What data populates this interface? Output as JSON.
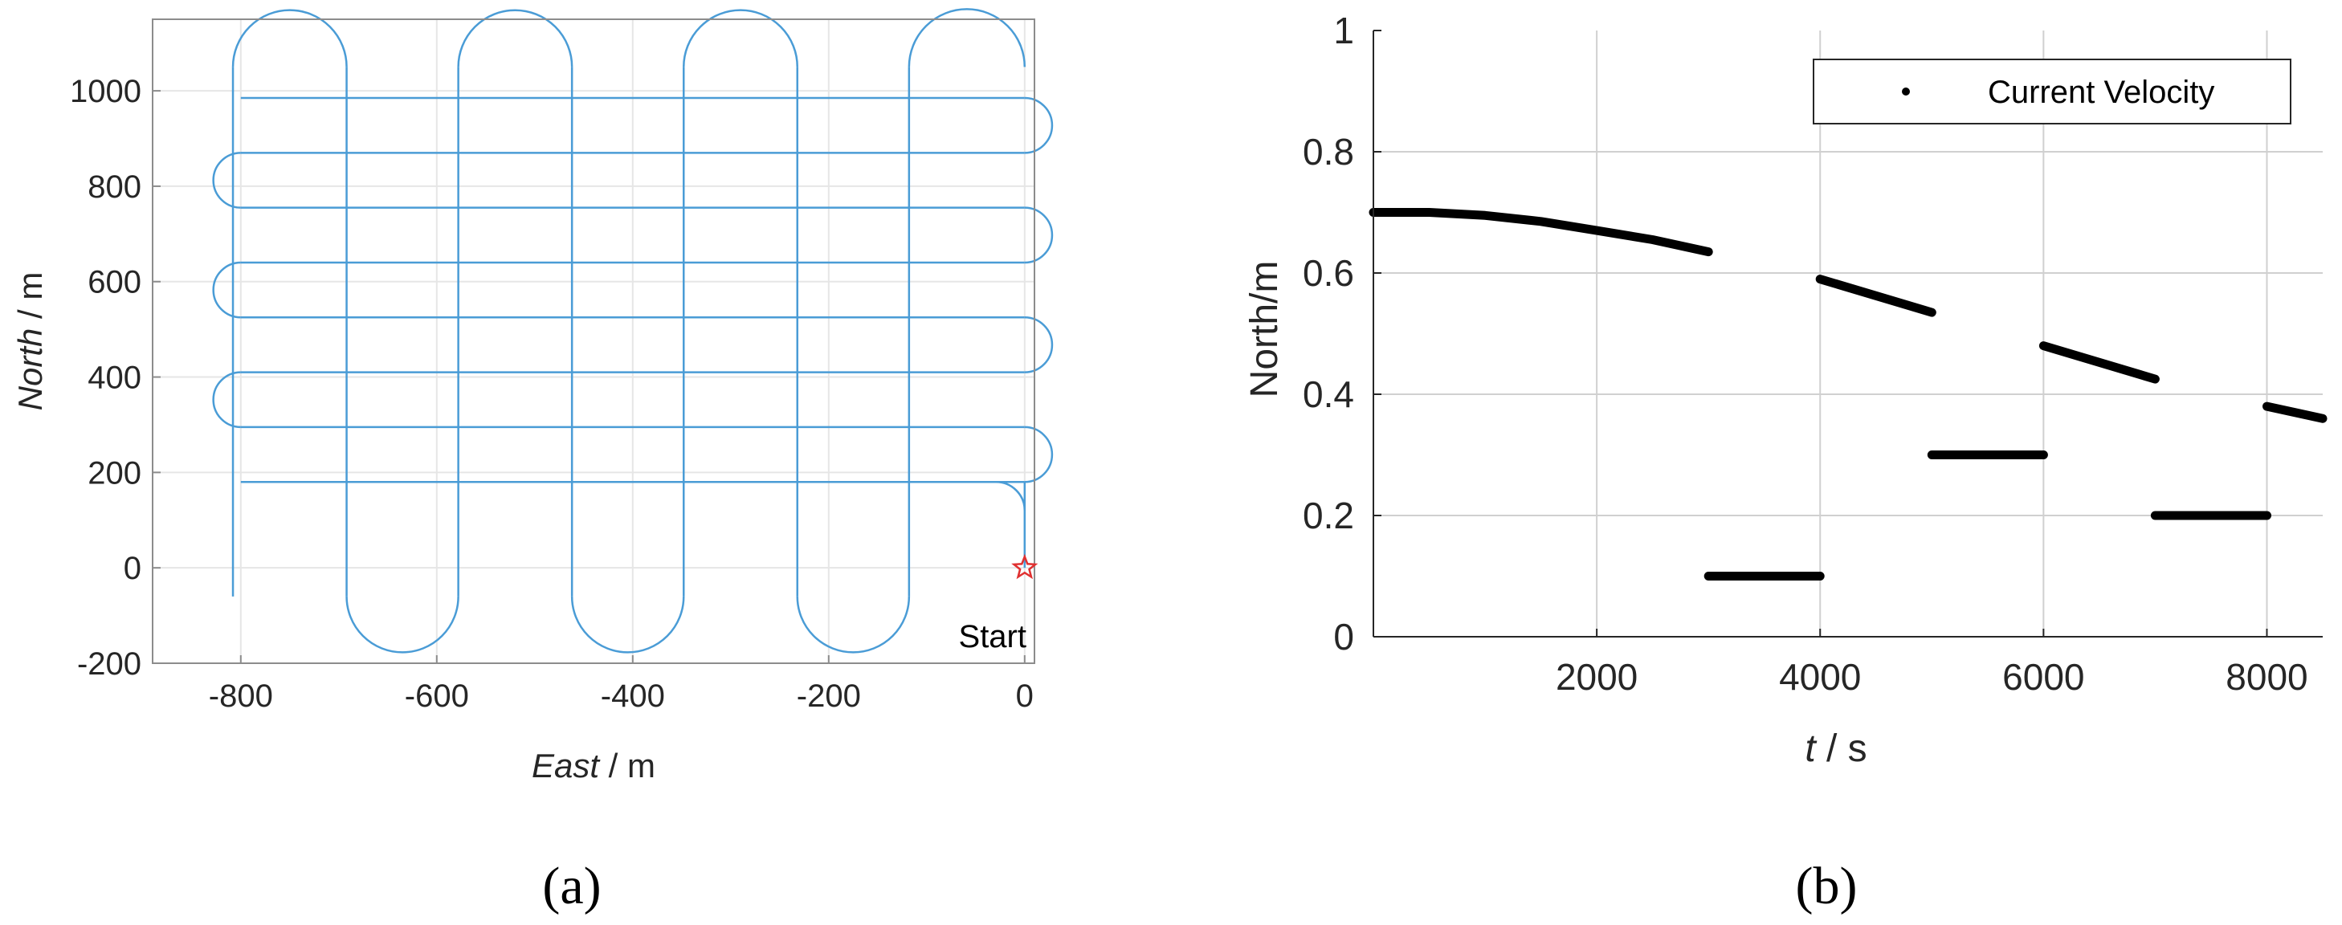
{
  "chart_data": [
    {
      "panel": "a",
      "type": "line",
      "caption": "(a)",
      "xlabel_italic": "East",
      "xlabel_unit": " / m",
      "ylabel_italic": "North",
      "ylabel_unit": " / m",
      "xlim": [
        -890,
        10
      ],
      "ylim": [
        -200,
        1150
      ],
      "xticks": [
        -800,
        -600,
        -400,
        -200,
        0
      ],
      "yticks": [
        -200,
        0,
        200,
        400,
        600,
        800,
        1000
      ],
      "grid": true,
      "series_color": "#4a9cd6",
      "start_marker": {
        "x": 0,
        "y": 0,
        "label": "Start",
        "color": "#e03030"
      },
      "series": [
        {
          "style": "lawnmower-path",
          "horizontal_lane_y": [
            985,
            870,
            755,
            640,
            525,
            410,
            295,
            180
          ],
          "horizontal_lane_x": [
            -800,
            0
          ],
          "vertical_lane_x": [
            -808,
            -692,
            -578,
            -462,
            -348,
            -232,
            -118,
            0
          ],
          "vertical_lane_y": [
            -60,
            1050
          ],
          "turn_radius_m": 58
        }
      ]
    },
    {
      "panel": "b",
      "type": "scatter",
      "caption": "(b)",
      "xlabel_italic": "t",
      "xlabel_unit": "  / s",
      "ylabel": "North/m",
      "xlim": [
        0,
        8500
      ],
      "ylim": [
        0,
        1
      ],
      "xticks": [
        2000,
        4000,
        6000,
        8000
      ],
      "yticks": [
        0,
        0.2,
        0.4,
        0.6,
        0.8,
        1
      ],
      "ytick_labels": [
        "0",
        "0.2",
        "0.4",
        "0.6",
        "0.8",
        "1"
      ],
      "grid": true,
      "legend": {
        "entries": [
          "Current Velocity"
        ],
        "position": "top-right"
      },
      "marker_color": "#000000",
      "series": [
        {
          "name": "Current Velocity",
          "segments": [
            {
              "x": [
                0,
                500,
                1000,
                1500,
                2000,
                2500,
                3000
              ],
              "y": [
                0.7,
                0.7,
                0.695,
                0.685,
                0.67,
                0.655,
                0.635
              ]
            },
            {
              "x": [
                3000,
                4000
              ],
              "y": [
                0.1,
                0.1
              ]
            },
            {
              "x": [
                4000,
                5000
              ],
              "y": [
                0.59,
                0.535
              ]
            },
            {
              "x": [
                5000,
                6000
              ],
              "y": [
                0.3,
                0.3
              ]
            },
            {
              "x": [
                6000,
                7000
              ],
              "y": [
                0.48,
                0.425
              ]
            },
            {
              "x": [
                7000,
                8000
              ],
              "y": [
                0.2,
                0.2
              ]
            },
            {
              "x": [
                8000,
                8500
              ],
              "y": [
                0.38,
                0.36
              ]
            }
          ]
        }
      ]
    }
  ]
}
